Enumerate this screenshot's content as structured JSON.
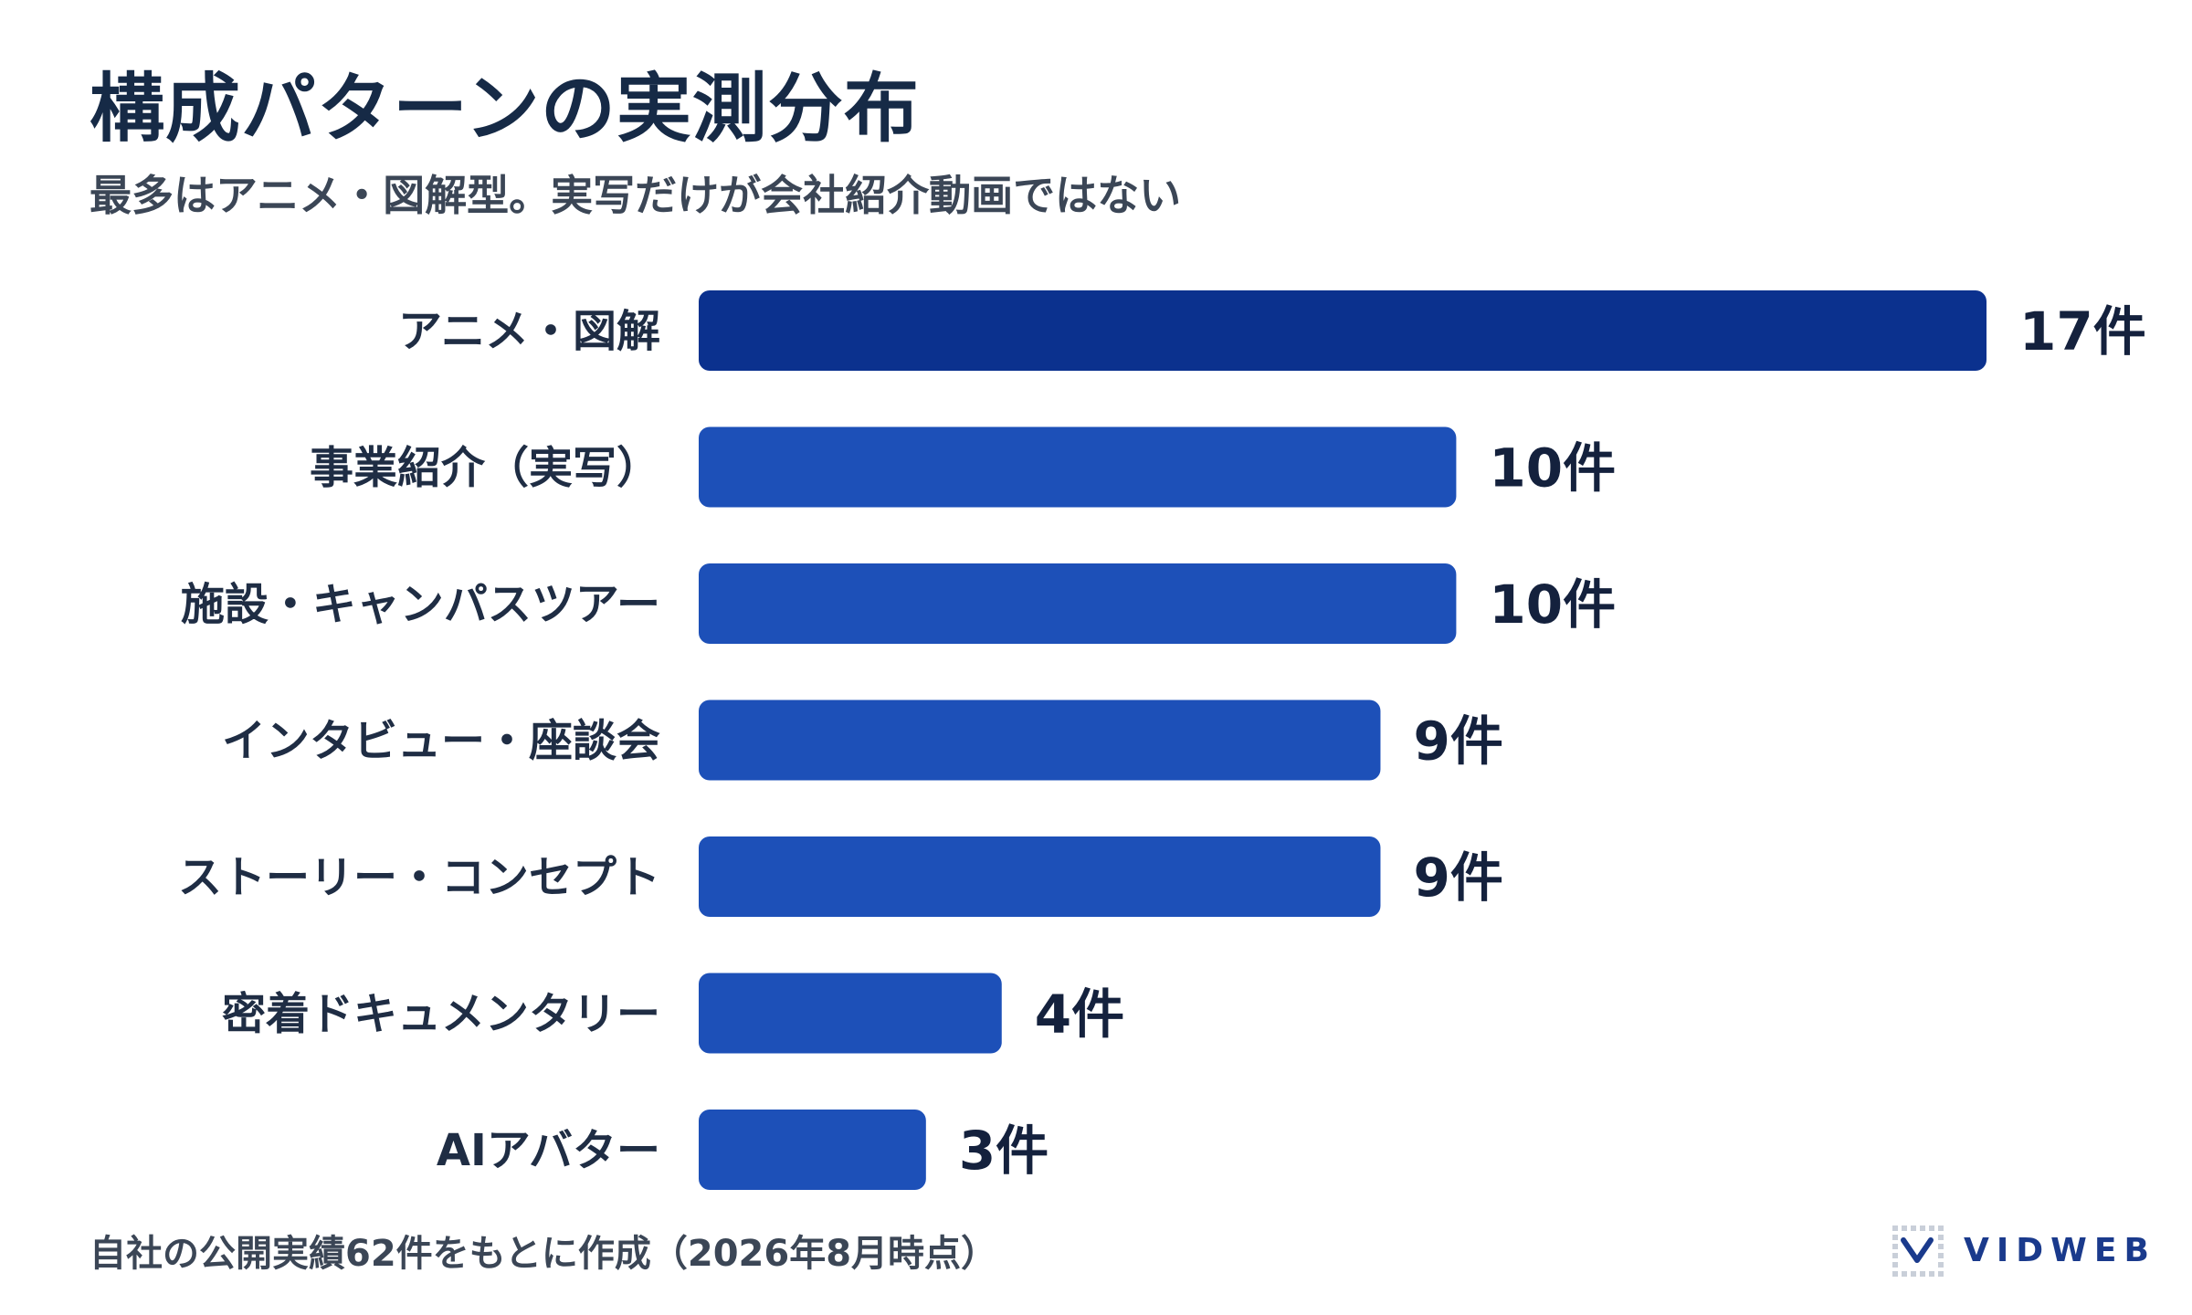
{
  "title": "構成パターンの実測分布",
  "subtitle": "最多はアニメ・図解型。実写だけが会社紹介動画ではない",
  "footnote": "自社の公開実績62件をもとに作成（2026年8月時点）",
  "brand": {
    "name": "VIDWEB",
    "logo_icon": "vidweb-logo-icon"
  },
  "colors": {
    "primary_bar": "#0b318e",
    "bar": "#1d50b8",
    "label": "#1f2d44",
    "value": "#14213d"
  },
  "chart_data": {
    "type": "bar",
    "orientation": "horizontal",
    "title": "構成パターンの実測分布",
    "subtitle": "最多はアニメ・図解型。実写だけが会社紹介動画ではない",
    "categories": [
      "アニメ・図解",
      "事業紹介（実写）",
      "施設・キャンパスツアー",
      "インタビュー・座談会",
      "ストーリー・コンセプト",
      "密着ドキュメンタリー",
      "AIアバター"
    ],
    "values": [
      17,
      10,
      10,
      9,
      9,
      4,
      3
    ],
    "value_labels": [
      "17件",
      "10件",
      "10件",
      "9件",
      "9件",
      "4件",
      "3件"
    ],
    "unit": "件",
    "xlim": [
      0,
      17
    ],
    "grid": false,
    "legend": false
  }
}
